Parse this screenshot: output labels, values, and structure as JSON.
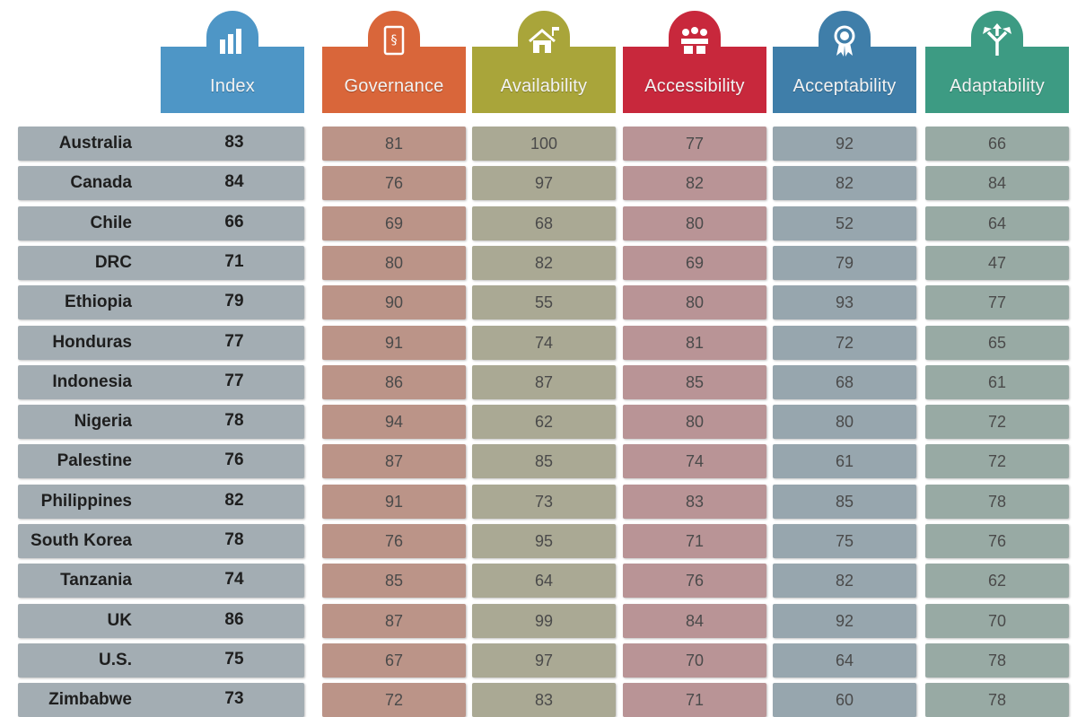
{
  "chart_data": {
    "type": "table",
    "columns": [
      {
        "key": "index",
        "label": "Index",
        "icon": "bar-chart-icon",
        "header_color": "#4e96c6",
        "cell_color": "#a3adb3"
      },
      {
        "key": "governance",
        "label": "Governance",
        "icon": "law-document-icon",
        "header_color": "#d9663a",
        "cell_color": "#bb9488"
      },
      {
        "key": "availability",
        "label": "Availability",
        "icon": "house-icon",
        "header_color": "#a9a53a",
        "cell_color": "#aaa994"
      },
      {
        "key": "accessibility",
        "label": "Accessibility",
        "icon": "classroom-icon",
        "header_color": "#c8283c",
        "cell_color": "#b99496"
      },
      {
        "key": "acceptability",
        "label": "Acceptability",
        "icon": "award-ribbon-icon",
        "header_color": "#3f7ea9",
        "cell_color": "#97a6ae"
      },
      {
        "key": "adaptability",
        "label": "Adaptability",
        "icon": "split-arrows-icon",
        "header_color": "#3d9b83",
        "cell_color": "#98aaa4"
      }
    ],
    "rows": [
      {
        "country": "Australia",
        "index": 83,
        "governance": 81,
        "availability": 100,
        "accessibility": 77,
        "acceptability": 92,
        "adaptability": 66
      },
      {
        "country": "Canada",
        "index": 84,
        "governance": 76,
        "availability": 97,
        "accessibility": 82,
        "acceptability": 82,
        "adaptability": 84
      },
      {
        "country": "Chile",
        "index": 66,
        "governance": 69,
        "availability": 68,
        "accessibility": 80,
        "acceptability": 52,
        "adaptability": 64
      },
      {
        "country": "DRC",
        "index": 71,
        "governance": 80,
        "availability": 82,
        "accessibility": 69,
        "acceptability": 79,
        "adaptability": 47
      },
      {
        "country": "Ethiopia",
        "index": 79,
        "governance": 90,
        "availability": 55,
        "accessibility": 80,
        "acceptability": 93,
        "adaptability": 77
      },
      {
        "country": "Honduras",
        "index": 77,
        "governance": 91,
        "availability": 74,
        "accessibility": 81,
        "acceptability": 72,
        "adaptability": 65
      },
      {
        "country": "Indonesia",
        "index": 77,
        "governance": 86,
        "availability": 87,
        "accessibility": 85,
        "acceptability": 68,
        "adaptability": 61
      },
      {
        "country": "Nigeria",
        "index": 78,
        "governance": 94,
        "availability": 62,
        "accessibility": 80,
        "acceptability": 80,
        "adaptability": 72
      },
      {
        "country": "Palestine",
        "index": 76,
        "governance": 87,
        "availability": 85,
        "accessibility": 74,
        "acceptability": 61,
        "adaptability": 72
      },
      {
        "country": "Philippines",
        "index": 82,
        "governance": 91,
        "availability": 73,
        "accessibility": 83,
        "acceptability": 85,
        "adaptability": 78
      },
      {
        "country": "South Korea",
        "index": 78,
        "governance": 76,
        "availability": 95,
        "accessibility": 71,
        "acceptability": 75,
        "adaptability": 76
      },
      {
        "country": "Tanzania",
        "index": 74,
        "governance": 85,
        "availability": 64,
        "accessibility": 76,
        "acceptability": 82,
        "adaptability": 62
      },
      {
        "country": "UK",
        "index": 86,
        "governance": 87,
        "availability": 99,
        "accessibility": 84,
        "acceptability": 92,
        "adaptability": 70
      },
      {
        "country": "U.S.",
        "index": 75,
        "governance": 67,
        "availability": 97,
        "accessibility": 70,
        "acceptability": 64,
        "adaptability": 78
      },
      {
        "country": "Zimbabwe",
        "index": 73,
        "governance": 72,
        "availability": 83,
        "accessibility": 71,
        "acceptability": 60,
        "adaptability": 78
      }
    ]
  }
}
